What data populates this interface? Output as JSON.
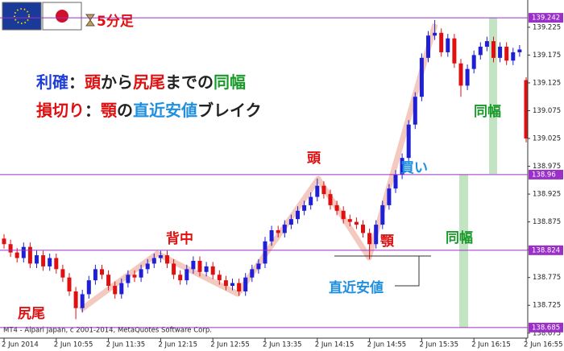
{
  "chart_data": {
    "type": "candlestick",
    "timeframe": "5分足",
    "copyright": "MT4 - Alpari Japan, c 2001-2014, MetaQuotes Software Corp.",
    "up_color": "#1f1fd6",
    "down_color": "#e01010",
    "level_color": "#9b30c8",
    "categories": [
      "2 Jun 2014",
      null,
      null,
      null,
      null,
      null,
      null,
      null,
      "2 Jun 10:55",
      null,
      null,
      null,
      null,
      null,
      null,
      null,
      "2 Jun 11:35",
      null,
      null,
      null,
      null,
      null,
      null,
      null,
      "2 Jun 12:15",
      null,
      null,
      null,
      null,
      null,
      null,
      null,
      "2 Jun 12:55",
      null,
      null,
      null,
      null,
      null,
      null,
      null,
      "2 Jun 13:35",
      null,
      null,
      null,
      null,
      null,
      null,
      null,
      "2 Jun 14:15",
      null,
      null,
      null,
      null,
      null,
      null,
      null,
      "2 Jun 14:55",
      null,
      null,
      null,
      null,
      null,
      null,
      null,
      "2 Jun 15:35",
      null,
      null,
      null,
      null,
      null,
      null,
      null,
      "2 Jun 16:15",
      null,
      null,
      null,
      null,
      null,
      null,
      null,
      "2 Jun 16:55"
    ],
    "open": [
      138.845,
      138.835,
      138.82,
      138.81,
      138.83,
      138.8,
      138.815,
      138.795,
      138.81,
      138.79,
      138.775,
      138.75,
      138.72,
      138.745,
      138.77,
      138.79,
      138.78,
      138.76,
      138.745,
      138.765,
      138.78,
      138.775,
      138.79,
      138.8,
      138.81,
      138.815,
      138.8,
      138.78,
      138.77,
      138.79,
      138.805,
      138.785,
      138.795,
      138.78,
      138.77,
      138.76,
      138.765,
      138.75,
      138.775,
      138.79,
      138.8,
      138.84,
      138.86,
      138.855,
      138.87,
      138.88,
      138.895,
      138.905,
      138.92,
      138.94,
      138.925,
      138.905,
      138.895,
      138.88,
      138.875,
      138.87,
      138.855,
      138.835,
      138.87,
      138.905,
      138.935,
      138.96,
      138.99,
      139.05,
      139.1,
      139.17,
      139.21,
      139.215,
      139.18,
      139.205,
      139.16,
      139.12,
      139.15,
      139.175,
      139.19,
      139.2,
      139.17,
      139.19,
      139.165,
      139.18,
      139.13
    ],
    "high": [
      138.853,
      138.843,
      138.828,
      138.838,
      138.838,
      138.823,
      138.823,
      138.818,
      138.818,
      138.798,
      138.783,
      138.758,
      138.753,
      138.778,
      138.798,
      138.798,
      138.788,
      138.768,
      138.773,
      138.788,
      138.788,
      138.798,
      138.808,
      138.818,
      138.823,
      138.823,
      138.808,
      138.788,
      138.798,
      138.813,
      138.813,
      138.803,
      138.803,
      138.788,
      138.778,
      138.773,
      138.773,
      138.783,
      138.798,
      138.808,
      138.848,
      138.868,
      138.868,
      138.878,
      138.888,
      138.903,
      138.913,
      138.928,
      138.953,
      138.948,
      138.933,
      138.913,
      138.903,
      138.888,
      138.883,
      138.878,
      138.863,
      138.878,
      138.913,
      138.943,
      138.968,
      138.998,
      139.058,
      139.108,
      139.178,
      139.218,
      139.238,
      139.223,
      139.213,
      139.213,
      139.168,
      139.158,
      139.183,
      139.198,
      139.208,
      139.208,
      139.198,
      139.198,
      139.188,
      139.193,
      139.135
    ],
    "low": [
      138.827,
      138.812,
      138.802,
      138.802,
      138.792,
      138.792,
      138.787,
      138.787,
      138.782,
      138.767,
      138.742,
      138.7,
      138.712,
      138.737,
      138.762,
      138.772,
      138.752,
      138.737,
      138.737,
      138.757,
      138.767,
      138.767,
      138.782,
      138.792,
      138.802,
      138.792,
      138.772,
      138.762,
      138.762,
      138.782,
      138.777,
      138.777,
      138.772,
      138.762,
      138.752,
      138.752,
      138.742,
      138.742,
      138.767,
      138.782,
      138.792,
      138.832,
      138.847,
      138.847,
      138.862,
      138.872,
      138.887,
      138.897,
      138.912,
      138.917,
      138.897,
      138.887,
      138.872,
      138.867,
      138.862,
      138.847,
      138.808,
      138.827,
      138.862,
      138.897,
      138.927,
      138.952,
      138.982,
      139.042,
      139.092,
      139.162,
      139.202,
      139.172,
      139.172,
      139.152,
      139.1,
      139.112,
      139.142,
      139.167,
      139.182,
      139.162,
      139.162,
      139.157,
      139.157,
      139.172,
      139.018
    ],
    "close": [
      138.835,
      138.82,
      138.81,
      138.83,
      138.8,
      138.815,
      138.795,
      138.81,
      138.79,
      138.775,
      138.75,
      138.72,
      138.745,
      138.77,
      138.79,
      138.78,
      138.76,
      138.745,
      138.765,
      138.78,
      138.775,
      138.79,
      138.8,
      138.81,
      138.815,
      138.8,
      138.78,
      138.77,
      138.79,
      138.805,
      138.785,
      138.795,
      138.78,
      138.77,
      138.76,
      138.765,
      138.75,
      138.775,
      138.79,
      138.8,
      138.84,
      138.86,
      138.855,
      138.87,
      138.88,
      138.895,
      138.905,
      138.92,
      138.94,
      138.925,
      138.905,
      138.895,
      138.88,
      138.875,
      138.87,
      138.855,
      138.835,
      138.87,
      138.905,
      138.935,
      138.96,
      138.99,
      139.05,
      139.1,
      139.17,
      139.21,
      139.215,
      139.18,
      139.205,
      139.16,
      139.12,
      139.15,
      139.175,
      139.19,
      139.2,
      139.17,
      139.19,
      139.165,
      139.18,
      139.185,
      139.025
    ],
    "ylim": [
      138.666,
      139.274
    ],
    "yticks": [
      138.675,
      138.725,
      138.775,
      138.825,
      138.875,
      138.925,
      138.975,
      139.025,
      139.075,
      139.125,
      139.175,
      139.225
    ],
    "levels": [
      139.242,
      138.96,
      138.824,
      138.685
    ],
    "annotations": [
      "尻尾",
      "背中",
      "頭",
      "顎",
      "買い",
      "直近安値",
      "同幅",
      "同幅"
    ],
    "notes": [
      [
        {
          "text": "利確",
          "color": "#1f3fd6"
        },
        {
          "text": "：",
          "color": "#222"
        },
        {
          "text": "頭",
          "color": "#e01010"
        },
        {
          "text": "から",
          "color": "#222"
        },
        {
          "text": "尻尾",
          "color": "#e01010"
        },
        {
          "text": "までの",
          "color": "#222"
        },
        {
          "text": "同幅",
          "color": "#1a9a2a"
        }
      ],
      [
        {
          "text": "損切り",
          "color": "#e01010"
        },
        {
          "text": "：",
          "color": "#222"
        },
        {
          "text": "顎",
          "color": "#e01010"
        },
        {
          "text": "の",
          "color": "#222"
        },
        {
          "text": "直近安値",
          "color": "#1f8fe0"
        },
        {
          "text": "ブレイク",
          "color": "#222"
        }
      ]
    ]
  }
}
